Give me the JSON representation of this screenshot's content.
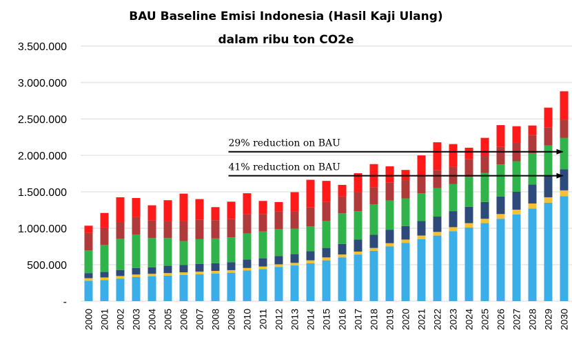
{
  "chart_data": {
    "type": "bar",
    "stacked": true,
    "title": "BAU Baseline Emisi Indonesia (Hasil Kaji Ulang)",
    "subtitle": "dalam ribu ton CO2e",
    "xlabel": "",
    "ylabel": "",
    "ylim": [
      0,
      3500000
    ],
    "yticks": [
      "-",
      "500.000",
      "1.000.000",
      "1.500.000",
      "2.000.000",
      "2.500.000",
      "3.000.000",
      "3.500.000"
    ],
    "grid": true,
    "legend": "none",
    "categories": [
      "2000",
      "2001",
      "2002",
      "2003",
      "2004",
      "2005",
      "2006",
      "2007",
      "2008",
      "2009",
      "2010",
      "2011",
      "2012",
      "2013",
      "2014",
      "2015",
      "2016",
      "2017",
      "2018",
      "2019",
      "2020",
      "2021",
      "2022",
      "2023",
      "2024",
      "2025",
      "2026",
      "2027",
      "2028",
      "2029",
      "2030"
    ],
    "series": [
      {
        "color": "#3aaee6",
        "values": [
          280000,
          290000,
          310000,
          330000,
          340000,
          350000,
          360000,
          370000,
          380000,
          390000,
          420000,
          440000,
          470000,
          490000,
          520000,
          560000,
          600000,
          640000,
          690000,
          750000,
          800000,
          850000,
          900000,
          960000,
          1010000,
          1070000,
          1130000,
          1190000,
          1270000,
          1350000,
          1440000
        ]
      },
      {
        "color": "#f6c131",
        "values": [
          35000,
          35000,
          35000,
          35000,
          35000,
          35000,
          35000,
          35000,
          35000,
          35000,
          35000,
          35000,
          35000,
          35000,
          40000,
          40000,
          40000,
          40000,
          40000,
          45000,
          45000,
          50000,
          50000,
          55000,
          60000,
          60000,
          65000,
          65000,
          70000,
          75000,
          80000
        ]
      },
      {
        "color": "#2e4a7a",
        "values": [
          70000,
          75000,
          80000,
          90000,
          90000,
          100000,
          100000,
          105000,
          105000,
          110000,
          115000,
          110000,
          115000,
          120000,
          125000,
          130000,
          145000,
          165000,
          180000,
          185000,
          185000,
          200000,
          210000,
          220000,
          225000,
          230000,
          240000,
          245000,
          260000,
          300000,
          290000
        ]
      },
      {
        "color": "#30b34a",
        "values": [
          310000,
          370000,
          430000,
          460000,
          400000,
          380000,
          330000,
          340000,
          340000,
          340000,
          360000,
          370000,
          370000,
          350000,
          340000,
          370000,
          420000,
          390000,
          420000,
          400000,
          380000,
          380000,
          390000,
          370000,
          410000,
          400000,
          440000,
          420000,
          430000,
          410000,
          430000
        ]
      },
      {
        "color": "#b03a3a",
        "values": [
          240000,
          240000,
          230000,
          240000,
          240000,
          230000,
          270000,
          270000,
          250000,
          250000,
          260000,
          240000,
          240000,
          240000,
          260000,
          260000,
          230000,
          260000,
          230000,
          250000,
          250000,
          250000,
          250000,
          240000,
          240000,
          240000,
          240000,
          250000,
          250000,
          250000,
          250000
        ]
      },
      {
        "color": "#ff1a1a",
        "values": [
          100000,
          200000,
          340000,
          260000,
          210000,
          290000,
          380000,
          280000,
          180000,
          240000,
          290000,
          180000,
          130000,
          260000,
          380000,
          290000,
          160000,
          260000,
          320000,
          220000,
          140000,
          270000,
          380000,
          310000,
          160000,
          240000,
          300000,
          230000,
          130000,
          270000,
          390000
        ]
      }
    ],
    "annotations": [
      {
        "text": "29% reduction on BAU",
        "y": 2050000,
        "x_start": "2009",
        "x_end": "2030"
      },
      {
        "text": "41% reduction on BAU",
        "y": 1720000,
        "x_start": "2009",
        "x_end": "2030"
      }
    ]
  }
}
